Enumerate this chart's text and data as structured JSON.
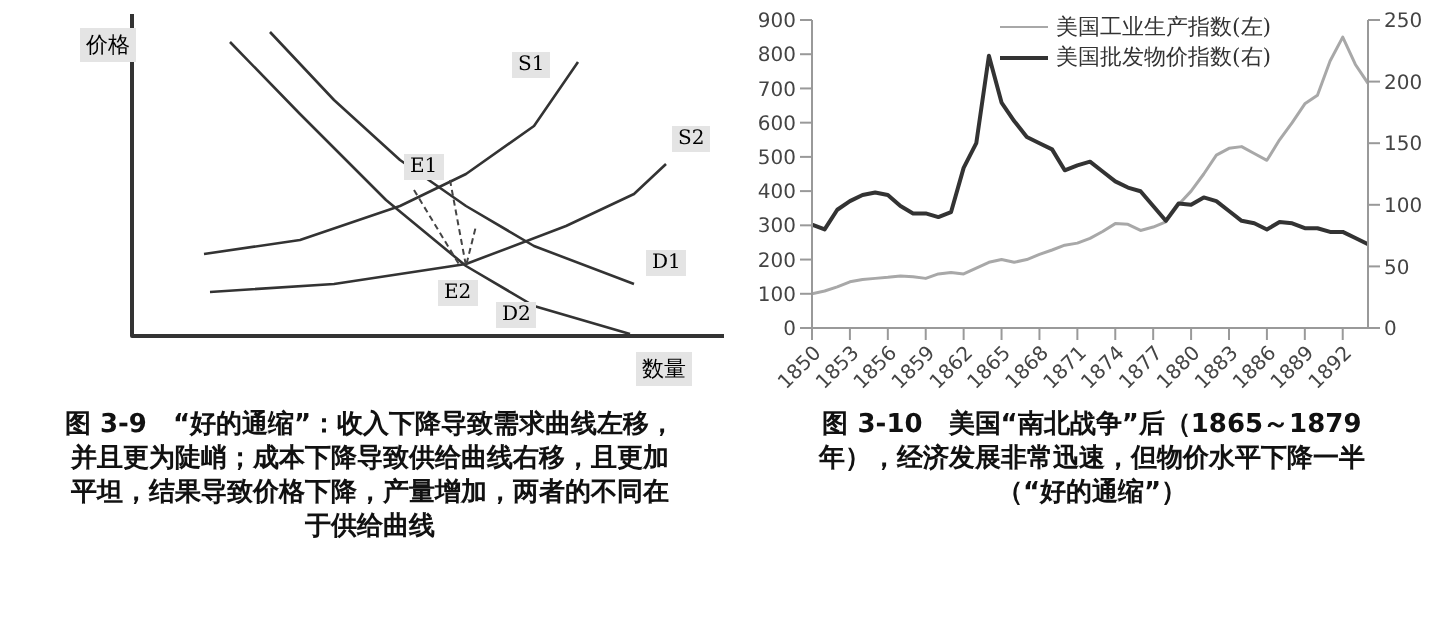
{
  "chart_data": [
    {
      "type": "other",
      "title": "图 3-9　“好的通缩”：收入下降导致需求曲线左移，并且更为陡峭；成本下降导致供给曲线右移，且更加平坦，结果导致价格下降，产量增加，两者的不同在于供给曲线",
      "xlabel": "数量",
      "ylabel": "价格",
      "annotations": [
        "S1",
        "S2",
        "D1",
        "D2",
        "E1",
        "E2"
      ]
    },
    {
      "type": "line",
      "title": "图 3-10　美国“南北战争”后（1865～1879 年），经济发展非常迅速，但物价水平下降一半（“好的通缩”）",
      "x": [
        1850,
        1851,
        1852,
        1853,
        1854,
        1855,
        1856,
        1857,
        1858,
        1859,
        1860,
        1861,
        1862,
        1863,
        1864,
        1865,
        1866,
        1867,
        1868,
        1869,
        1870,
        1871,
        1872,
        1873,
        1874,
        1875,
        1876,
        1877,
        1878,
        1879,
        1880,
        1881,
        1882,
        1883,
        1884,
        1885,
        1886,
        1887,
        1888,
        1889,
        1890,
        1891,
        1892,
        1893,
        1894
      ],
      "xlim": [
        1850,
        1894
      ],
      "xticks": [
        1850,
        1853,
        1856,
        1859,
        1862,
        1865,
        1868,
        1871,
        1874,
        1877,
        1880,
        1883,
        1886,
        1889,
        1892
      ],
      "ylim": [
        0,
        900
      ],
      "yticks": [
        0,
        100,
        200,
        300,
        400,
        500,
        600,
        700,
        800,
        900
      ],
      "y2lim": [
        0,
        250
      ],
      "y2ticks": [
        0,
        50,
        100,
        150,
        200,
        250
      ],
      "grid": false,
      "legend": "top",
      "marker": "none",
      "series": [
        {
          "name": "美国工业生产指数(左)",
          "color": "#a8a8a8",
          "values": [
            100,
            108,
            120,
            135,
            142,
            145,
            148,
            152,
            150,
            145,
            158,
            162,
            158,
            175,
            192,
            200,
            192,
            200,
            215,
            228,
            242,
            248,
            262,
            282,
            305,
            303,
            285,
            295,
            310,
            360,
            400,
            450,
            505,
            525,
            530,
            510,
            490,
            550,
            600,
            655,
            680,
            780,
            850,
            770,
            715
          ]
        },
        {
          "name": "美国批发物价指数(右)",
          "color": "#333333",
          "axis": "y2",
          "values": [
            84,
            80,
            96,
            103,
            108,
            110,
            108,
            99,
            93,
            93,
            90,
            94,
            130,
            150,
            221,
            183,
            168,
            155,
            150,
            145,
            128,
            132,
            135,
            127,
            119,
            114,
            111,
            99,
            87,
            101,
            100,
            106,
            103,
            95,
            87,
            85,
            80,
            86,
            85,
            81,
            81,
            78,
            78,
            73,
            68
          ]
        }
      ]
    }
  ]
}
